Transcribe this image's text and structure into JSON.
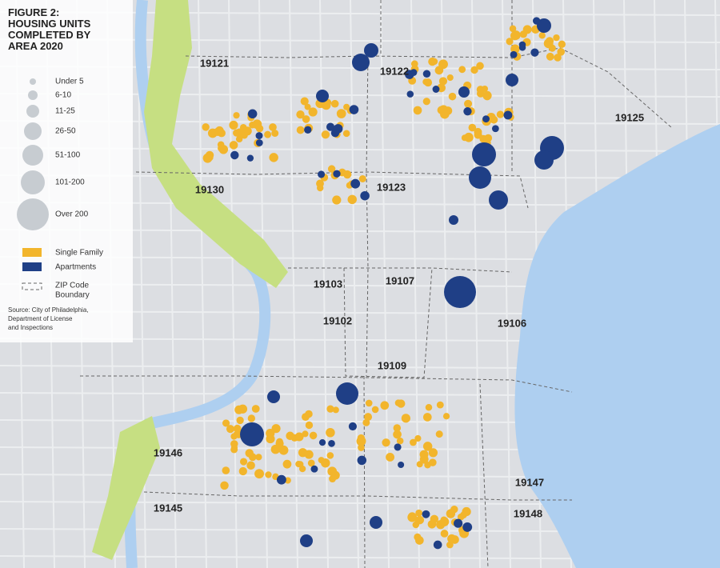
{
  "legend": {
    "title": [
      "FIGURE 2:",
      "HOUSING UNITS",
      "COMPLETED BY",
      "AREA 2020"
    ],
    "sizes": [
      "Under 5",
      "6-10",
      "11-25",
      "26-50",
      "51-100",
      "101-200",
      "Over 200"
    ],
    "types": [
      "Single Family",
      "Apartments"
    ],
    "boundary": [
      "ZIP Code",
      "Boundary"
    ],
    "source": [
      "Source: City of Philadelphia,",
      "Department of License",
      "and Inspections"
    ]
  },
  "zip_codes": [
    "19121",
    "19122",
    "19125",
    "19130",
    "19123",
    "19103",
    "19107",
    "19102",
    "19106",
    "19109",
    "19146",
    "19147",
    "19145",
    "19148"
  ]
}
